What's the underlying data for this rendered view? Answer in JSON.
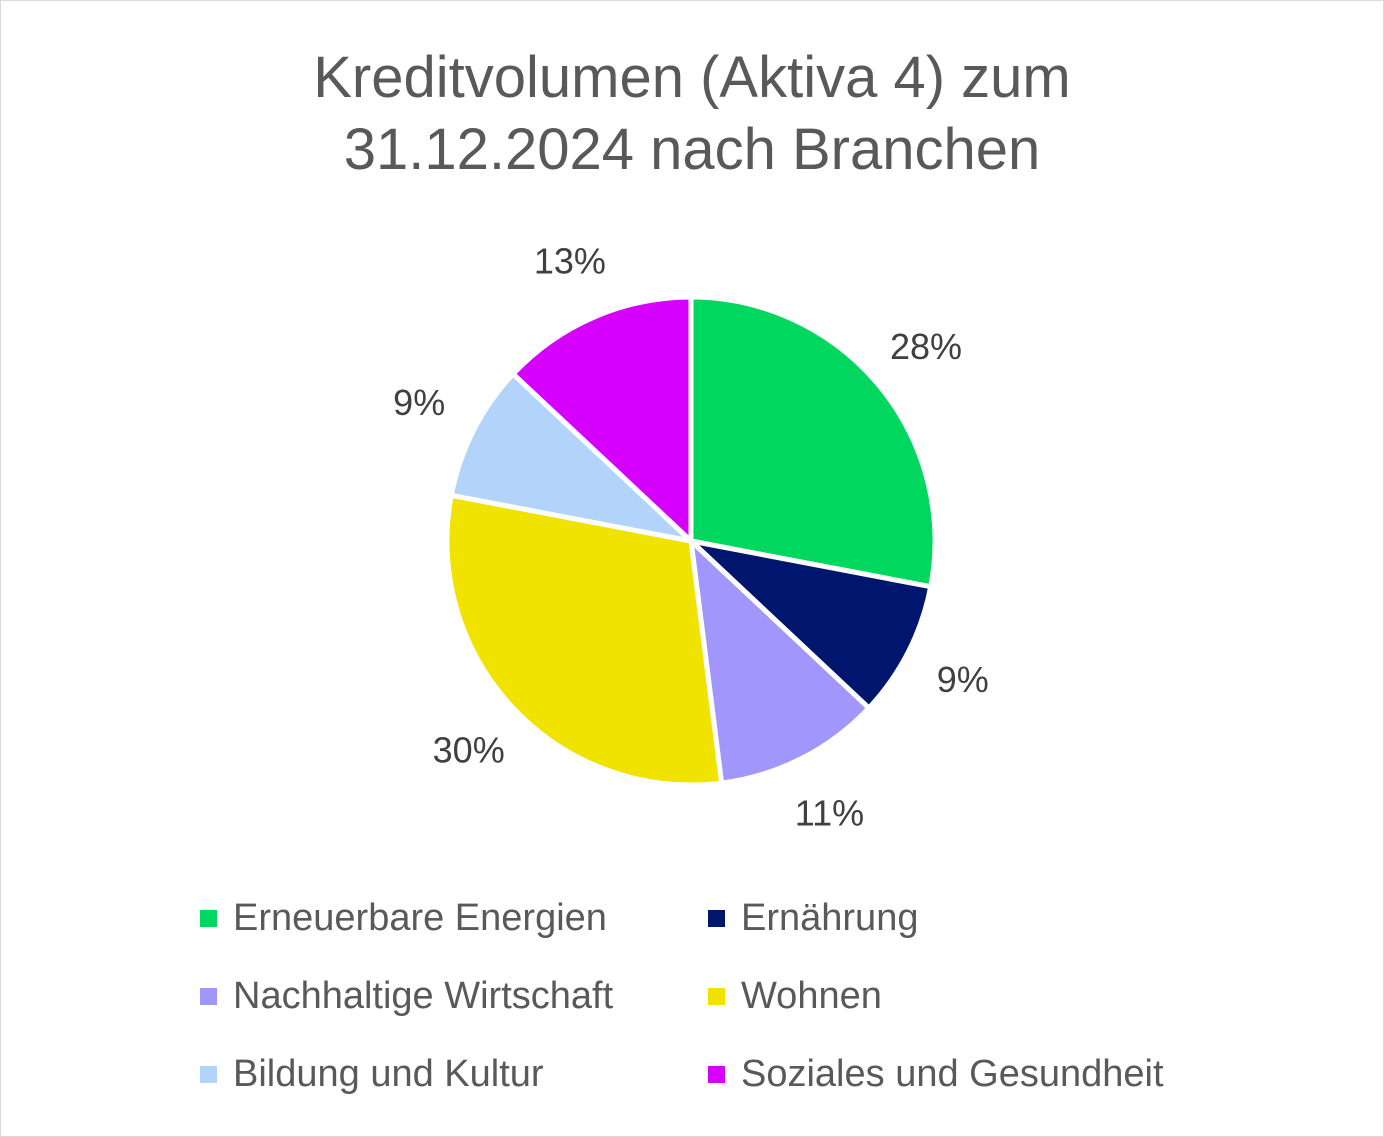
{
  "chart_data": {
    "type": "pie",
    "title_lines": [
      "Kreditvolumen (Aktiva 4) zum",
      "31.12.2024 nach Branchen"
    ],
    "slices": [
      {
        "name": "Erneuerbare Energien",
        "value": 28,
        "label": "28%",
        "color": "#00d75f"
      },
      {
        "name": "Ernährung",
        "value": 9,
        "label": "9%",
        "color": "#00156e"
      },
      {
        "name": "Nachhaltige Wirtschaft",
        "value": 11,
        "label": "11%",
        "color": "#a196fb"
      },
      {
        "name": "Wohnen",
        "value": 30,
        "label": "30%",
        "color": "#f0e300"
      },
      {
        "name": "Bildung und Kultur",
        "value": 9,
        "label": "9%",
        "color": "#b2d4fb"
      },
      {
        "name": "Soziales und Gesundheit",
        "value": 13,
        "label": "13%",
        "color": "#d600ff"
      }
    ],
    "legend_position": "bottom",
    "start_angle_deg": 0,
    "direction": "clockwise"
  }
}
